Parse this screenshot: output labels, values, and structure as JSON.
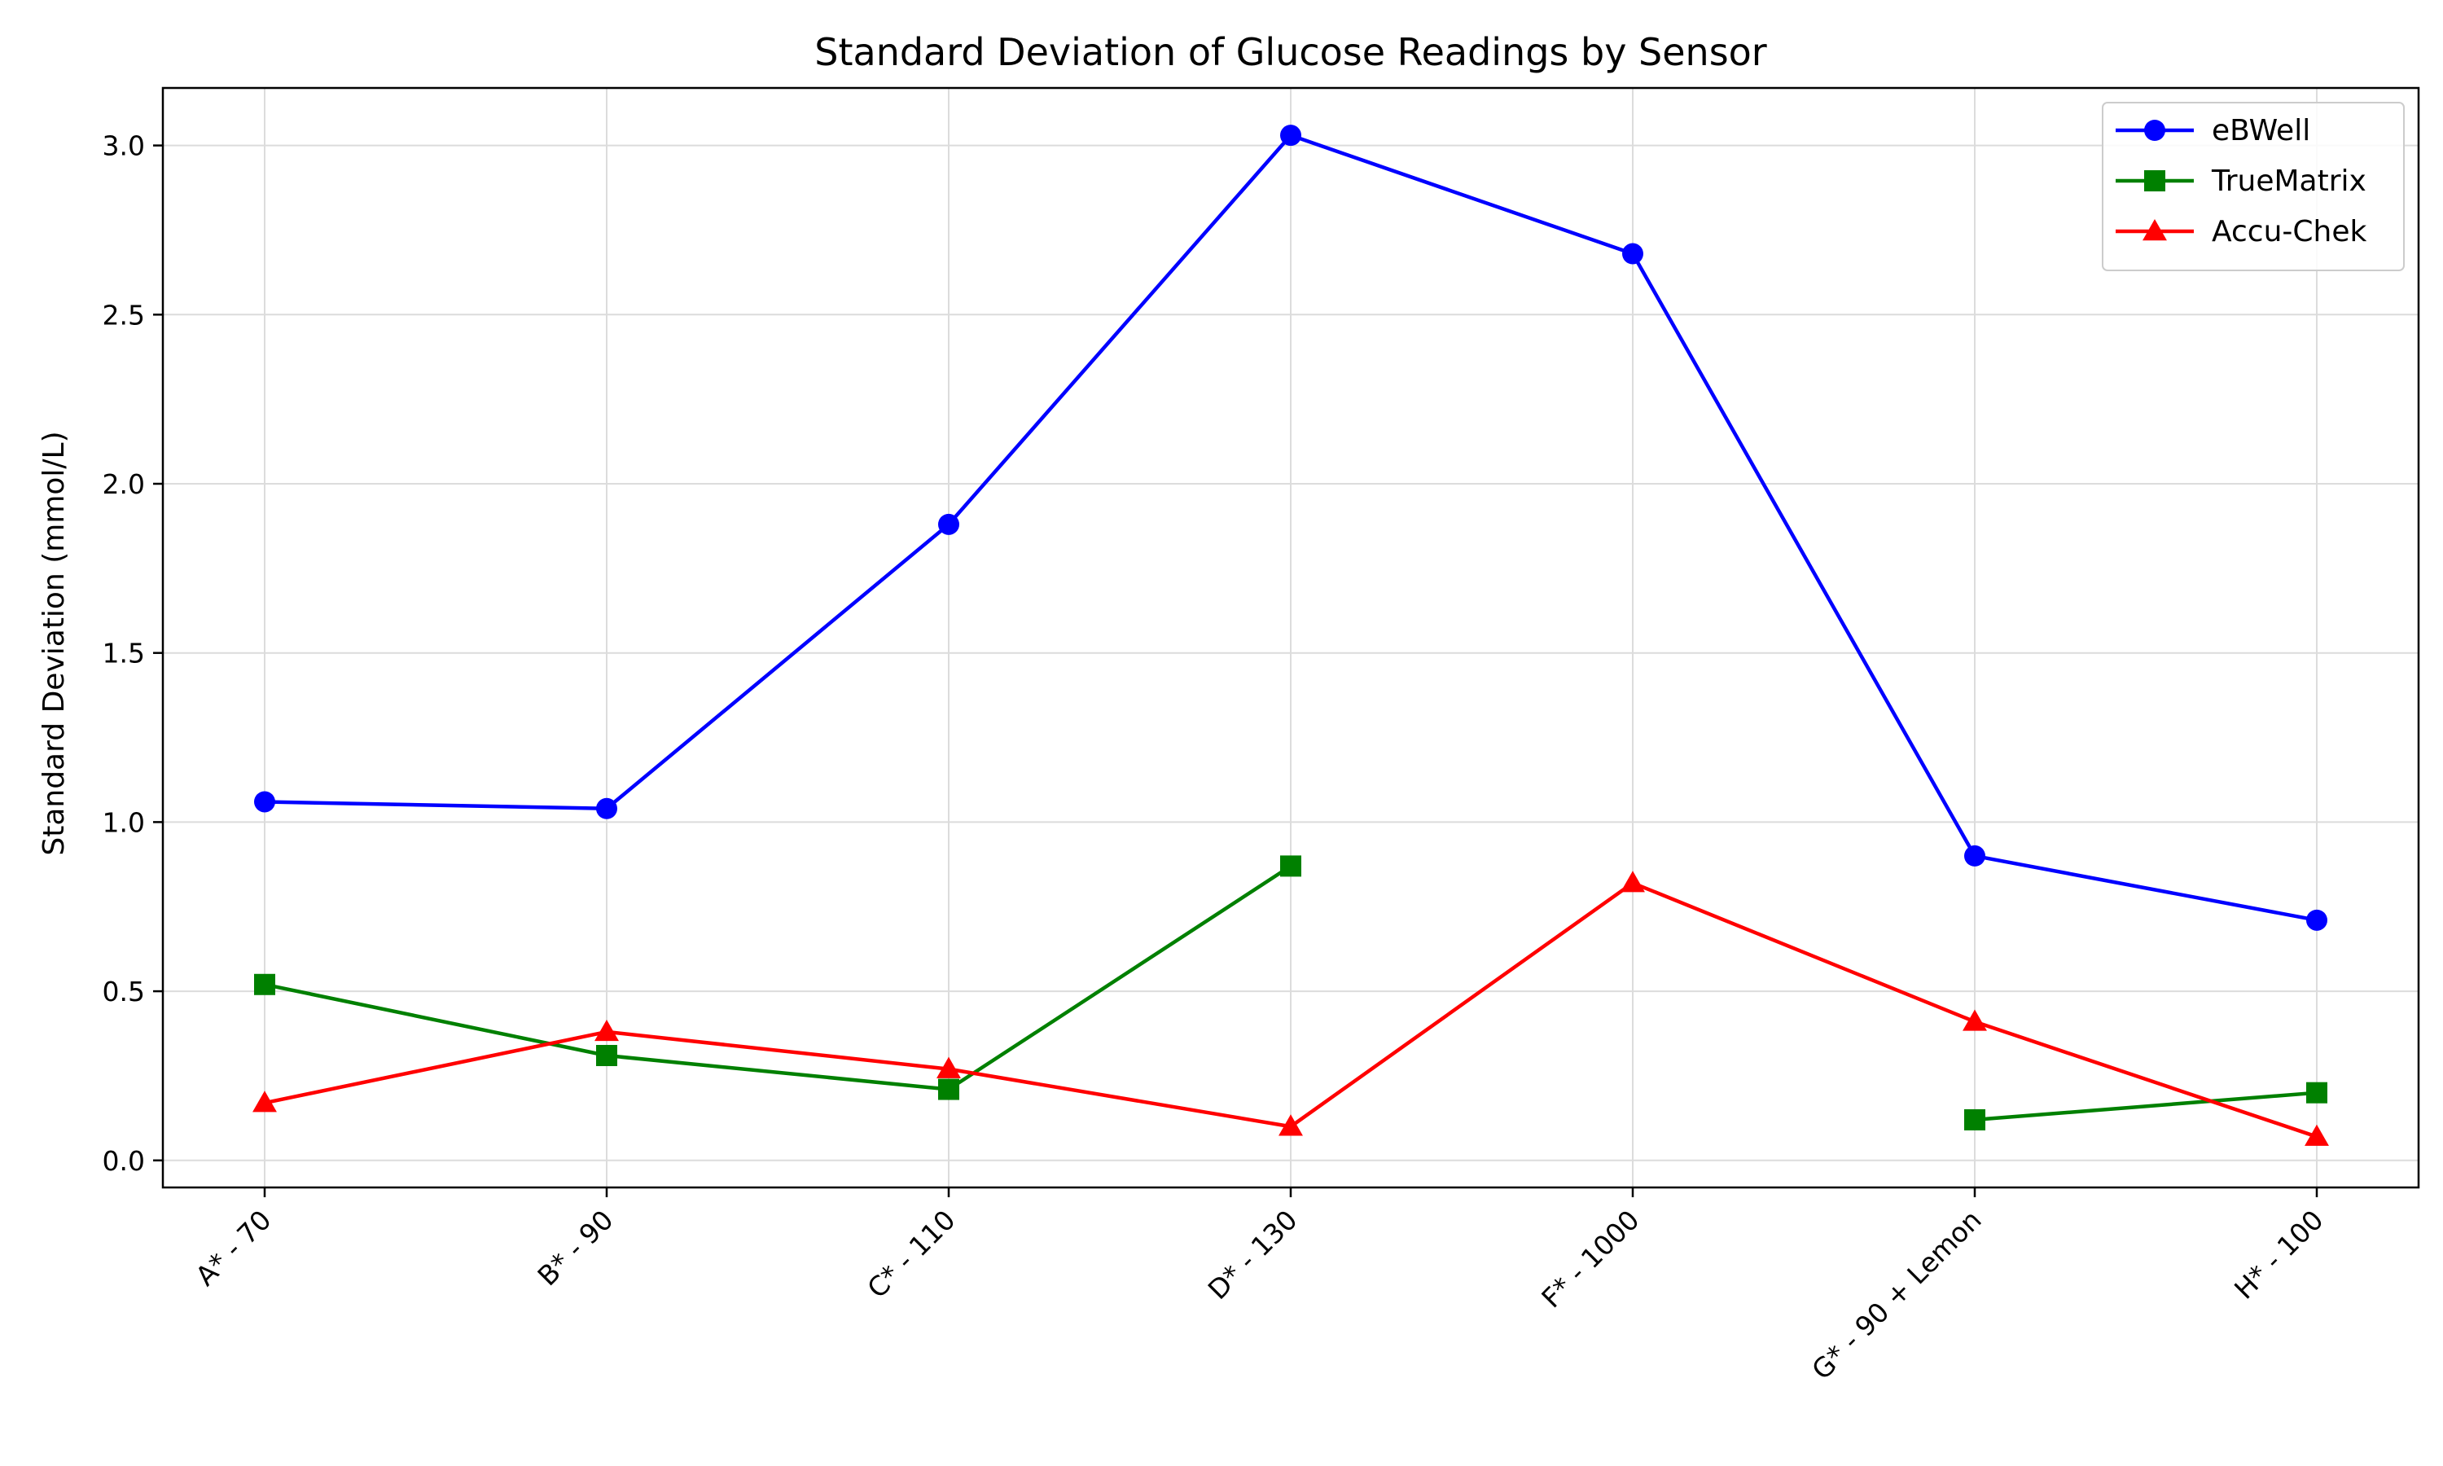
{
  "chart_data": {
    "type": "line",
    "title": "Standard Deviation of Glucose Readings by Sensor",
    "xlabel": "",
    "ylabel": "Standard Deviation (mmol/L)",
    "categories": [
      "A* - 70",
      "B* - 90",
      "C* - 110",
      "D* - 130",
      "F* - 1000",
      "G* - 90 + Lemon",
      "H* - 100"
    ],
    "ylim": [
      -0.08,
      3.17
    ],
    "yticks": [
      "0.0",
      "0.5",
      "1.0",
      "1.5",
      "2.0",
      "2.5",
      "3.0"
    ],
    "grid": true,
    "legend_position": "top-right",
    "series": [
      {
        "name": "eBWell",
        "color": "#0000ff",
        "marker": "circle",
        "values": [
          1.06,
          1.04,
          1.88,
          3.03,
          2.68,
          0.9,
          0.71
        ]
      },
      {
        "name": "TrueMatrix",
        "color": "#008000",
        "marker": "square",
        "values": [
          0.52,
          0.31,
          0.21,
          0.87,
          null,
          0.12,
          0.2
        ]
      },
      {
        "name": "Accu-Chek",
        "color": "#ff0000",
        "marker": "triangle",
        "values": [
          0.17,
          0.38,
          0.27,
          0.1,
          0.82,
          0.41,
          0.07
        ]
      }
    ]
  }
}
